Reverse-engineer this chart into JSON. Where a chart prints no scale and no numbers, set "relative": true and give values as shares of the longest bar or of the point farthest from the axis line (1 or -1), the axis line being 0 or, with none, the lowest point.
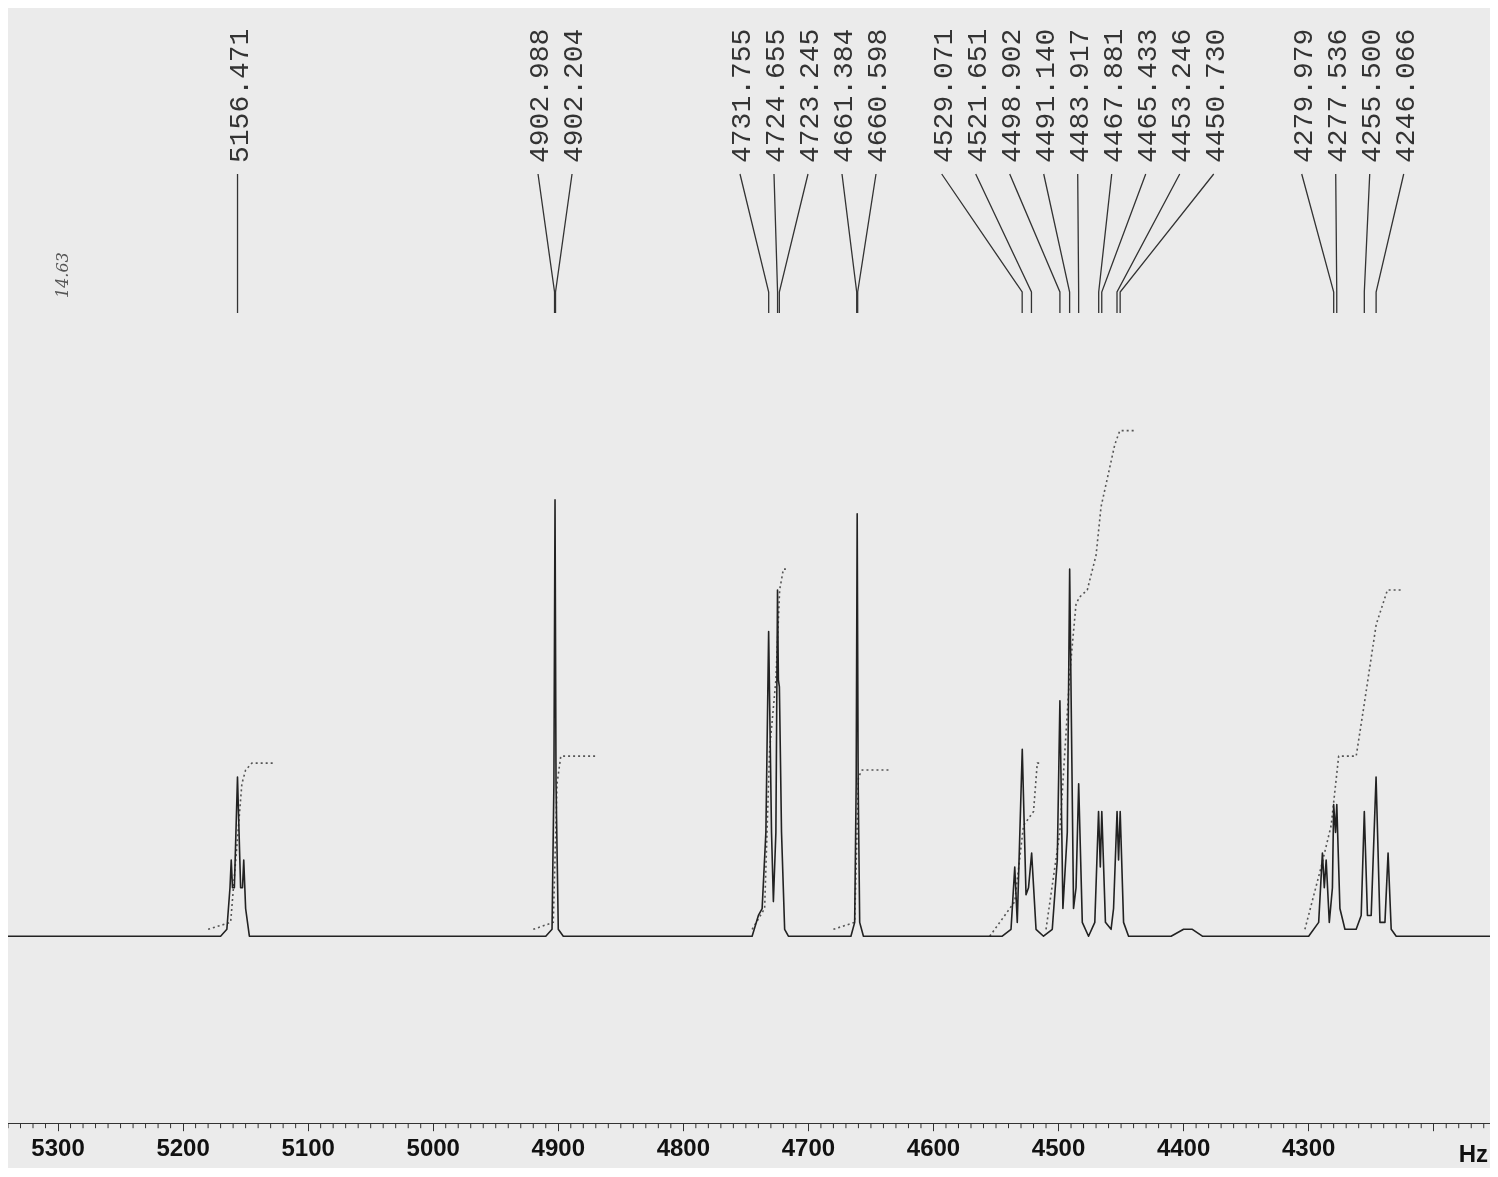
{
  "chart_data": {
    "type": "line",
    "relative": true,
    "xlabel": "Hz",
    "xlim": [
      5340,
      4155
    ],
    "xticks": [
      5300,
      5200,
      5100,
      5000,
      4900,
      4800,
      4700,
      4600,
      4500,
      4400,
      4300,
      {
        "value": 4200,
        "label": null
      }
    ],
    "grid": false,
    "legend": false,
    "marker": "none",
    "series": [
      {
        "color": "#222222",
        "line_style": "solid",
        "x": [
          5340,
          5170,
          5165,
          5162.5,
          5161.5,
          5160.5,
          5159,
          5156.5,
          5154,
          5152.5,
          5151.5,
          5150,
          5147,
          4910,
          4905,
          4903.5,
          4902.6,
          4901.8,
          4900,
          4896,
          4745,
          4740,
          4737,
          4734,
          4731.8,
          4729.5,
          4728,
          4726,
          4724.7,
          4724,
          4723.2,
          4721.5,
          4719,
          4716,
          4666,
          4663,
          4661.8,
          4661,
          4660.2,
          4659,
          4656,
          4545,
          4538,
          4535,
          4533,
          4529,
          4526,
          4524,
          4521.5,
          4518,
          4512,
          4505,
          4501,
          4498.9,
          4496.5,
          4493,
          4491.1,
          4488,
          4486,
          4483.9,
          4481,
          4476,
          4471,
          4468,
          4466.6,
          4465.4,
          4462.5,
          4458,
          4456,
          4453.2,
          4452,
          4450.7,
          4448,
          4444,
          4410,
          4400,
          4393,
          4385,
          4375,
          4300,
          4292,
          4289,
          4287.5,
          4286,
          4283.5,
          4281,
          4280,
          4278.5,
          4277.5,
          4275,
          4271,
          4262,
          4258,
          4255.5,
          4253,
          4250,
          4246.1,
          4243,
          4239,
          4236.5,
          4234,
          4230,
          4155
        ],
        "values": [
          0.27,
          0.27,
          0.28,
          0.34,
          0.38,
          0.34,
          0.34,
          0.5,
          0.34,
          0.34,
          0.38,
          0.31,
          0.27,
          0.27,
          0.28,
          0.49,
          0.9,
          0.49,
          0.28,
          0.27,
          0.27,
          0.3,
          0.31,
          0.42,
          0.71,
          0.42,
          0.32,
          0.42,
          0.77,
          0.64,
          0.63,
          0.42,
          0.28,
          0.27,
          0.27,
          0.29,
          0.49,
          0.88,
          0.49,
          0.29,
          0.27,
          0.27,
          0.28,
          0.37,
          0.29,
          0.54,
          0.33,
          0.34,
          0.39,
          0.28,
          0.27,
          0.28,
          0.38,
          0.61,
          0.31,
          0.42,
          0.8,
          0.31,
          0.34,
          0.49,
          0.29,
          0.27,
          0.29,
          0.45,
          0.37,
          0.45,
          0.29,
          0.28,
          0.31,
          0.45,
          0.38,
          0.45,
          0.29,
          0.27,
          0.27,
          0.28,
          0.28,
          0.27,
          0.27,
          0.27,
          0.29,
          0.39,
          0.34,
          0.38,
          0.29,
          0.34,
          0.46,
          0.42,
          0.46,
          0.31,
          0.28,
          0.28,
          0.3,
          0.45,
          0.3,
          0.3,
          0.5,
          0.29,
          0.29,
          0.39,
          0.28,
          0.27,
          0.27
        ]
      },
      {
        "color": "#555555",
        "line_style": "dotted",
        "x": [
          5180,
          5162,
          5157,
          5153,
          5150,
          5145,
          5127,
          null,
          4920,
          4904,
          4901,
          4898,
          4870,
          null,
          4745,
          4735,
          4731,
          4726,
          4723,
          4720,
          4718,
          null,
          4680,
          4663,
          4660,
          4657,
          4634,
          null,
          4555,
          4535,
          4528,
          4520,
          4517,
          4514,
          null,
          4510,
          4499,
          4491,
          4486,
          4483,
          4477,
          4470,
          4466,
          4455,
          4451,
          4438,
          null,
          4303,
          4290,
          4282,
          4276,
          4262,
          4256,
          4246,
          4237,
          4225
        ],
        "values": [
          0.28,
          0.29,
          0.4,
          0.49,
          0.51,
          0.52,
          0.52,
          null,
          0.28,
          0.29,
          0.49,
          0.53,
          0.53,
          null,
          0.28,
          0.31,
          0.54,
          0.64,
          0.77,
          0.8,
          0.8,
          null,
          0.28,
          0.29,
          0.5,
          0.51,
          0.51,
          null,
          0.27,
          0.32,
          0.43,
          0.45,
          0.52,
          0.52,
          null,
          0.28,
          0.42,
          0.65,
          0.75,
          0.76,
          0.77,
          0.82,
          0.89,
          0.98,
          1,
          1,
          null,
          0.28,
          0.37,
          0.43,
          0.53,
          0.53,
          0.6,
          0.72,
          0.77,
          0.77
        ]
      }
    ],
    "annotations": [
      {
        "text": "5156.471",
        "x": 5156.471
      },
      {
        "text": "4902.988",
        "x": 4902.988
      },
      {
        "text": "4902.204",
        "x": 4902.204
      },
      {
        "text": "4731.755",
        "x": 4731.755
      },
      {
        "text": "4724.655",
        "x": 4724.655
      },
      {
        "text": "4723.245",
        "x": 4723.245
      },
      {
        "text": "4661.384",
        "x": 4661.384
      },
      {
        "text": "4660.598",
        "x": 4660.598
      },
      {
        "text": "4529.071",
        "x": 4529.071
      },
      {
        "text": "4521.651",
        "x": 4521.651
      },
      {
        "text": "4498.902",
        "x": 4498.902
      },
      {
        "text": "4491.140",
        "x": 4491.14
      },
      {
        "text": "4483.917",
        "x": 4483.917
      },
      {
        "text": "4467.881",
        "x": 4467.881
      },
      {
        "text": "4465.433",
        "x": 4465.433
      },
      {
        "text": "4453.246",
        "x": 4453.246
      },
      {
        "text": "4450.730",
        "x": 4450.73
      },
      {
        "text": "4279.979",
        "x": 4279.979
      },
      {
        "text": "4277.536",
        "x": 4277.536
      },
      {
        "text": "4255.500",
        "x": 4255.5
      },
      {
        "text": "4246.066",
        "x": 4246.066
      },
      "14.63"
    ]
  }
}
